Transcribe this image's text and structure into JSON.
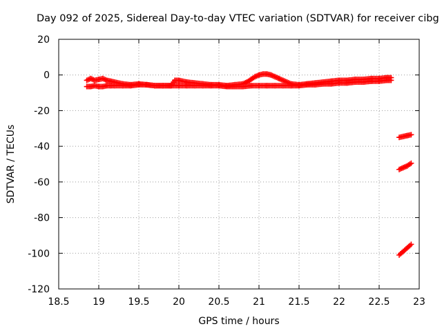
{
  "chart_data": {
    "type": "scatter",
    "title": "Day 092 of 2025, Sidereal Day-to-day VTEC variation (SDTVAR) for receiver cibg",
    "xlabel": "GPS time / hours",
    "ylabel": "SDTVAR / TECUs",
    "xlim": [
      18.5,
      23
    ],
    "ylim": [
      -120,
      20
    ],
    "xticks": [
      18.5,
      19,
      19.5,
      20,
      20.5,
      21,
      21.5,
      22,
      22.5,
      23
    ],
    "yticks": [
      -120,
      -100,
      -80,
      -60,
      -40,
      -20,
      0,
      20
    ],
    "xtick_labels": [
      "18.5",
      "19",
      "19.5",
      "20",
      "20.5",
      "21",
      "21.5",
      "22",
      "22.5",
      "23"
    ],
    "ytick_labels": [
      "-120",
      "-100",
      "-80",
      "-60",
      "-40",
      "-20",
      "0",
      "20"
    ],
    "grid": true,
    "marker": "+",
    "color": "#ff0000",
    "series": [
      {
        "values_x": [
          18.85,
          18.9,
          18.95,
          19.0,
          19.05,
          19.1,
          19.15,
          19.2,
          19.3,
          19.4,
          19.5,
          19.6,
          19.7,
          19.8,
          19.9,
          19.95,
          20.0,
          20.1,
          20.2,
          20.3,
          20.4,
          20.5,
          20.6,
          20.7,
          20.8,
          20.85,
          20.9,
          20.95,
          21.0,
          21.05,
          21.1,
          21.15,
          21.2,
          21.25,
          21.3,
          21.4,
          21.5,
          21.6,
          21.7,
          21.8,
          21.9,
          22.0,
          22.1,
          22.2,
          22.3,
          22.4,
          22.5,
          22.6,
          22.65
        ],
        "values_y": [
          -3,
          -2,
          -3,
          -2.5,
          -2,
          -3,
          -3.5,
          -4,
          -5,
          -5.5,
          -5,
          -5.5,
          -6,
          -6,
          -6,
          -3,
          -3,
          -4,
          -4.5,
          -5,
          -5.5,
          -5.5,
          -6,
          -5.5,
          -5,
          -4,
          -2.5,
          -1,
          0,
          0.5,
          0.5,
          0,
          -1,
          -2,
          -3,
          -5,
          -5.5,
          -5,
          -4.5,
          -4,
          -3.5,
          -3,
          -3,
          -2.5,
          -2.5,
          -2,
          -2,
          -1.5,
          -1.5
        ]
      },
      {
        "values_x": [
          18.85,
          18.9,
          18.95,
          19.0,
          19.05,
          19.1,
          19.15,
          19.2,
          19.3,
          19.4,
          19.5,
          19.6,
          19.7,
          19.8,
          19.9,
          20.0,
          20.1,
          20.2,
          20.3,
          20.4,
          20.5,
          20.6,
          20.7,
          20.8,
          20.9,
          21.0,
          21.1,
          21.2,
          21.3,
          21.4,
          21.5,
          21.6,
          21.7,
          21.8,
          21.9,
          22.0,
          22.1,
          22.2,
          22.3,
          22.4,
          22.5,
          22.6,
          22.65
        ],
        "values_y": [
          -6.5,
          -6.5,
          -6,
          -6.5,
          -6.5,
          -6,
          -6,
          -6,
          -6,
          -6,
          -5.5,
          -5.5,
          -6,
          -6,
          -6,
          -6,
          -6,
          -6,
          -6,
          -6,
          -6,
          -6.5,
          -6.5,
          -6.5,
          -6,
          -6,
          -6,
          -6,
          -6,
          -6,
          -6,
          -5.5,
          -5.5,
          -5,
          -5,
          -4.5,
          -4.5,
          -4,
          -4,
          -3.5,
          -3.5,
          -3,
          -3
        ]
      },
      {
        "values_x": [
          22.75,
          22.8,
          22.85,
          22.9
        ],
        "values_y": [
          -35,
          -34.5,
          -34,
          -33.5
        ]
      },
      {
        "values_x": [
          22.75,
          22.8,
          22.85,
          22.9
        ],
        "values_y": [
          -53,
          -52,
          -51,
          -49.5
        ]
      },
      {
        "values_x": [
          22.75,
          22.8,
          22.85,
          22.9
        ],
        "values_y": [
          -101,
          -99,
          -97,
          -95
        ]
      }
    ]
  }
}
